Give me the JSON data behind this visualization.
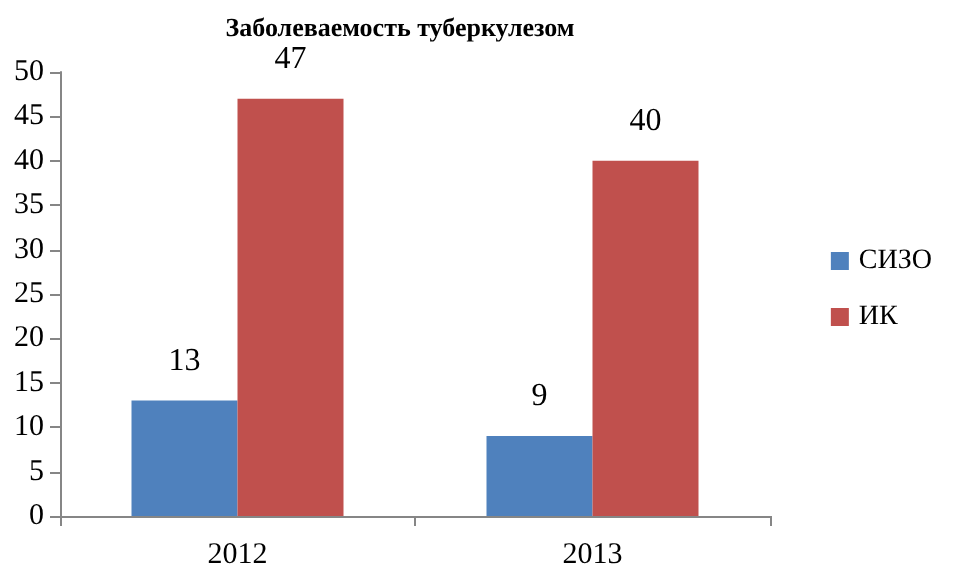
{
  "chart_data": {
    "type": "bar",
    "title": "Заболеваемость туберкулезом",
    "categories": [
      "2012",
      "2013"
    ],
    "series": [
      {
        "name": "СИЗО",
        "color": "#4f81bd",
        "values": [
          13,
          9
        ]
      },
      {
        "name": "ИК",
        "color": "#c0504d",
        "values": [
          47,
          40
        ]
      }
    ],
    "ylim": [
      0,
      50
    ],
    "yticks": [
      0,
      5,
      10,
      15,
      20,
      25,
      30,
      35,
      40,
      45,
      50
    ],
    "grid": false,
    "legend": "right",
    "data_labels": true
  }
}
